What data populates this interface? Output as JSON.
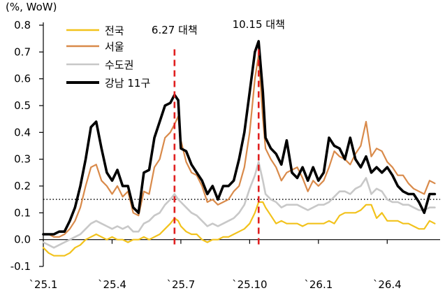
{
  "unit_label": "(%, WoW)",
  "colors": {
    "nationwide": "#f2c21b",
    "seoul": "#d98a4a",
    "capital_area": "#c8c8c8",
    "gangnam11": "#000000",
    "policy_line": "#e02020",
    "threshold_line": "#000000"
  },
  "chart_data": {
    "type": "line",
    "ylim": [
      -0.1,
      0.8
    ],
    "yticks": [
      -0.1,
      0.0,
      0.1,
      0.2,
      0.3,
      0.4,
      0.5,
      0.6,
      0.7,
      0.8
    ],
    "ytick_labels": [
      "-0.1",
      "0.0",
      "0.1",
      "0.2",
      "0.3",
      "0.4",
      "0.5",
      "0.6",
      "0.7",
      "0.8"
    ],
    "xlim": [
      0,
      75
    ],
    "xticks": [
      {
        "x": 0,
        "label": "`25.1"
      },
      {
        "x": 13,
        "label": "`25.4"
      },
      {
        "x": 26,
        "label": "`25.7"
      },
      {
        "x": 39,
        "label": "`25.10"
      },
      {
        "x": 52,
        "label": "`26.1"
      },
      {
        "x": 65,
        "label": "`26.4"
      }
    ],
    "threshold": 0.15,
    "annotations": [
      {
        "x": 24.8,
        "label": "6.27 대책"
      },
      {
        "x": 40.7,
        "label": "10.15 대책"
      }
    ],
    "legend_position": "top-left",
    "series": [
      {
        "key": "nationwide",
        "name": "전국",
        "x": [
          0,
          1,
          2,
          3,
          4,
          5,
          6,
          7,
          8,
          9,
          10,
          11,
          12,
          13,
          14,
          15,
          16,
          17,
          18,
          19,
          20,
          21,
          22,
          23,
          24,
          24.8,
          25.5,
          26,
          27,
          28,
          29,
          30,
          31,
          32,
          33,
          34,
          35,
          36,
          37,
          38,
          39,
          40,
          40.7,
          41.5,
          42,
          43,
          44,
          45,
          46,
          47,
          48,
          49,
          50,
          51,
          52,
          53,
          54,
          55,
          56,
          57,
          58,
          59,
          60,
          61,
          62,
          63,
          64,
          65,
          66,
          67,
          68,
          69,
          70,
          71,
          72,
          73,
          74
        ],
        "values": [
          -0.03,
          -0.05,
          -0.06,
          -0.06,
          -0.06,
          -0.05,
          -0.03,
          -0.02,
          0.0,
          0.01,
          0.02,
          0.01,
          0.0,
          0.01,
          0.0,
          0.0,
          -0.01,
          0.0,
          0.0,
          0.01,
          0.0,
          0.01,
          0.02,
          0.04,
          0.06,
          0.08,
          0.07,
          0.05,
          0.03,
          0.02,
          0.02,
          0.0,
          -0.01,
          0.0,
          0.0,
          0.01,
          0.01,
          0.02,
          0.03,
          0.04,
          0.06,
          0.1,
          0.14,
          0.14,
          0.12,
          0.09,
          0.06,
          0.07,
          0.06,
          0.06,
          0.06,
          0.05,
          0.06,
          0.06,
          0.06,
          0.06,
          0.07,
          0.06,
          0.09,
          0.1,
          0.1,
          0.1,
          0.11,
          0.13,
          0.13,
          0.08,
          0.1,
          0.07,
          0.07,
          0.07,
          0.06,
          0.06,
          0.05,
          0.04,
          0.04,
          0.07,
          0.06
        ]
      },
      {
        "key": "seoul",
        "name": "서울",
        "x": [
          0,
          1,
          2,
          3,
          4,
          5,
          6,
          7,
          8,
          9,
          10,
          11,
          12,
          13,
          14,
          15,
          16,
          17,
          18,
          19,
          20,
          21,
          22,
          23,
          24,
          24.8,
          25.5,
          26,
          27,
          28,
          29,
          30,
          31,
          32,
          33,
          34,
          35,
          36,
          37,
          38,
          39,
          40,
          40.7,
          41.5,
          42,
          43,
          44,
          45,
          46,
          47,
          48,
          49,
          50,
          51,
          52,
          53,
          54,
          55,
          56,
          57,
          58,
          59,
          60,
          61,
          62,
          63,
          64,
          65,
          66,
          67,
          68,
          69,
          70,
          71,
          72,
          73,
          74
        ],
        "values": [
          0.02,
          0.02,
          0.01,
          0.01,
          0.02,
          0.04,
          0.07,
          0.12,
          0.2,
          0.27,
          0.28,
          0.22,
          0.2,
          0.17,
          0.2,
          0.16,
          0.18,
          0.1,
          0.09,
          0.18,
          0.17,
          0.27,
          0.3,
          0.38,
          0.4,
          0.43,
          0.46,
          0.37,
          0.29,
          0.25,
          0.24,
          0.2,
          0.14,
          0.15,
          0.13,
          0.14,
          0.15,
          0.18,
          0.2,
          0.27,
          0.4,
          0.6,
          0.69,
          0.45,
          0.34,
          0.3,
          0.27,
          0.22,
          0.25,
          0.26,
          0.27,
          0.23,
          0.18,
          0.22,
          0.2,
          0.22,
          0.27,
          0.33,
          0.31,
          0.3,
          0.28,
          0.32,
          0.35,
          0.44,
          0.31,
          0.34,
          0.33,
          0.29,
          0.27,
          0.24,
          0.24,
          0.21,
          0.19,
          0.18,
          0.17,
          0.22,
          0.21
        ]
      },
      {
        "key": "capital_area",
        "name": "수도권",
        "x": [
          0,
          1,
          2,
          3,
          4,
          5,
          6,
          7,
          8,
          9,
          10,
          11,
          12,
          13,
          14,
          15,
          16,
          17,
          18,
          19,
          20,
          21,
          22,
          23,
          24,
          24.8,
          25.5,
          26,
          27,
          28,
          29,
          30,
          31,
          32,
          33,
          34,
          35,
          36,
          37,
          38,
          39,
          40,
          40.7,
          41.5,
          42,
          43,
          44,
          45,
          46,
          47,
          48,
          49,
          50,
          51,
          52,
          53,
          54,
          55,
          56,
          57,
          58,
          59,
          60,
          61,
          62,
          63,
          64,
          65,
          66,
          67,
          68,
          69,
          70,
          71,
          72,
          73,
          74
        ],
        "values": [
          -0.01,
          -0.02,
          -0.03,
          -0.02,
          -0.01,
          0.0,
          0.01,
          0.02,
          0.04,
          0.06,
          0.07,
          0.06,
          0.05,
          0.04,
          0.05,
          0.04,
          0.05,
          0.03,
          0.03,
          0.06,
          0.07,
          0.09,
          0.1,
          0.13,
          0.15,
          0.17,
          0.15,
          0.14,
          0.12,
          0.1,
          0.09,
          0.07,
          0.05,
          0.06,
          0.05,
          0.06,
          0.07,
          0.08,
          0.1,
          0.13,
          0.19,
          0.24,
          0.29,
          0.22,
          0.17,
          0.15,
          0.14,
          0.12,
          0.13,
          0.13,
          0.13,
          0.12,
          0.11,
          0.12,
          0.13,
          0.13,
          0.14,
          0.16,
          0.18,
          0.18,
          0.17,
          0.19,
          0.2,
          0.23,
          0.17,
          0.19,
          0.18,
          0.15,
          0.14,
          0.14,
          0.13,
          0.13,
          0.12,
          0.11,
          0.11,
          0.12,
          0.12
        ]
      },
      {
        "key": "gangnam11",
        "name": "강남 11구",
        "x": [
          0,
          1,
          2,
          3,
          4,
          5,
          6,
          7,
          8,
          9,
          10,
          11,
          12,
          13,
          14,
          15,
          16,
          17,
          18,
          19,
          20,
          21,
          22,
          23,
          24,
          24.8,
          25.5,
          26,
          27,
          28,
          29,
          30,
          31,
          32,
          33,
          34,
          35,
          36,
          37,
          38,
          39,
          40,
          40.7,
          41.5,
          42,
          43,
          44,
          45,
          46,
          47,
          48,
          49,
          50,
          51,
          52,
          53,
          54,
          55,
          56,
          57,
          58,
          59,
          60,
          61,
          62,
          63,
          64,
          65,
          66,
          67,
          68,
          69,
          70,
          71,
          72,
          73,
          74
        ],
        "values": [
          0.02,
          0.02,
          0.02,
          0.03,
          0.03,
          0.07,
          0.12,
          0.2,
          0.3,
          0.42,
          0.44,
          0.34,
          0.25,
          0.22,
          0.26,
          0.2,
          0.2,
          0.12,
          0.1,
          0.25,
          0.26,
          0.38,
          0.44,
          0.5,
          0.51,
          0.54,
          0.52,
          0.34,
          0.33,
          0.28,
          0.25,
          0.22,
          0.17,
          0.2,
          0.15,
          0.2,
          0.2,
          0.22,
          0.3,
          0.4,
          0.55,
          0.7,
          0.74,
          0.55,
          0.38,
          0.34,
          0.32,
          0.28,
          0.37,
          0.25,
          0.23,
          0.27,
          0.22,
          0.27,
          0.22,
          0.25,
          0.38,
          0.35,
          0.34,
          0.3,
          0.38,
          0.3,
          0.27,
          0.31,
          0.25,
          0.27,
          0.25,
          0.27,
          0.24,
          0.2,
          0.18,
          0.17,
          0.17,
          0.14,
          0.1,
          0.17,
          0.17
        ]
      }
    ]
  }
}
